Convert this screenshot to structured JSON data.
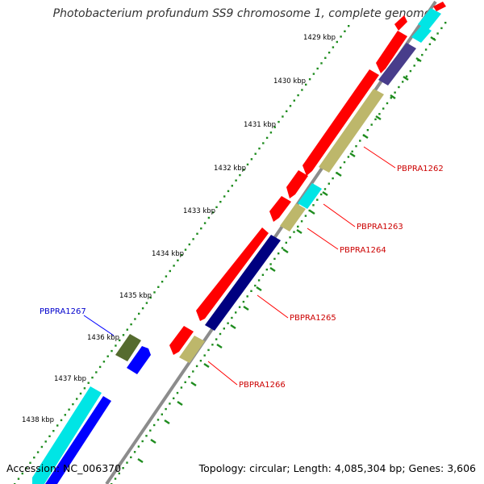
{
  "title": "Photobacterium profundum SS9 chromosome 1, complete genome",
  "footer": {
    "accession": "Accession: NC_006370",
    "summary": "Topology: circular; Length: 4,085,304 bp; Genes: 3,606"
  },
  "colors": {
    "backbone": "#8c8c8c",
    "tick_dots": "#1e8c1e",
    "red": "#ff0000",
    "khaki": "#bdb76b",
    "navy": "#000080",
    "slate": "#483d8b",
    "cyan": "#00e5e5",
    "blue": "#0000ff",
    "olive": "#556b2f",
    "label_red": "#cc0000",
    "label_blue": "#0000cc"
  },
  "scale_labels": [
    "1429 kbp",
    "1430 kbp",
    "1431 kbp",
    "1432 kbp",
    "1433 kbp",
    "1434 kbp",
    "1435 kbp",
    "1436 kbp",
    "1437 kbp",
    "1438 kbp"
  ],
  "gene_labels": [
    {
      "text": "PBPRA1262",
      "color": "label_red"
    },
    {
      "text": "PBPRA1263",
      "color": "label_red"
    },
    {
      "text": "PBPRA1264",
      "color": "label_red"
    },
    {
      "text": "PBPRA1265",
      "color": "label_red"
    },
    {
      "text": "PBPRA1266",
      "color": "label_red"
    },
    {
      "text": "PBPRA1267",
      "color": "label_blue"
    }
  ]
}
